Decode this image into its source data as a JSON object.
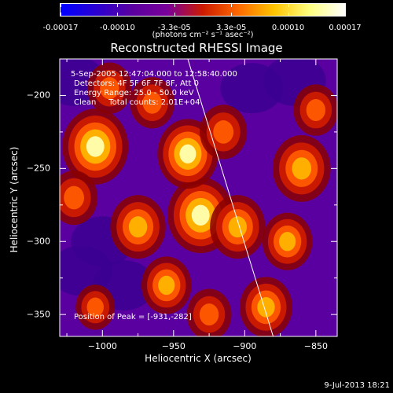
{
  "colorbar": {
    "ticks": [
      "-0.00017",
      "-0.00010",
      "-3.3e-05",
      "3.3e-05",
      "0.00010",
      "0.00017"
    ],
    "units": "(photons cm⁻² s⁻¹ asec⁻²)",
    "colors": [
      "#0000ff",
      "#2a00d0",
      "#5a00a0",
      "#7a009a",
      "#cc1a00",
      "#ff6a00",
      "#ffc400",
      "#ffff80",
      "#ffffff"
    ]
  },
  "chart_data": {
    "type": "heatmap",
    "title": "Reconstructed RHESSI Image",
    "xlabel": "Heliocentric X (arcsec)",
    "ylabel": "Heliocentric Y (arcsec)",
    "xlim": [
      -1030,
      -835
    ],
    "ylim": [
      -365,
      -175
    ],
    "x_ticks": [
      -1000,
      -950,
      -900,
      -850
    ],
    "y_ticks": [
      -200,
      -250,
      -300,
      -350
    ],
    "info_lines": [
      "5-Sep-2005 12:47:04.000 to 12:58:40.000",
      "Detectors: 4F 5F 6F 7F 8F, Att 0",
      "Energy Range: 25.0 - 50.0 keV",
      "Clean     Total counts: 2.01E+04"
    ],
    "peak_label": "Position of Peak = [-931,-282]",
    "peak": [
      -931,
      -282
    ],
    "limb_line": [
      [
        -940,
        -175
      ],
      [
        -880,
        -365
      ]
    ],
    "sources": [
      {
        "x": -1005,
        "y": -235,
        "level": 1.0
      },
      {
        "x": -931,
        "y": -282,
        "level": 1.0
      },
      {
        "x": -940,
        "y": -240,
        "level": 0.9
      },
      {
        "x": -975,
        "y": -290,
        "level": 0.8
      },
      {
        "x": -955,
        "y": -330,
        "level": 0.7
      },
      {
        "x": -860,
        "y": -250,
        "level": 0.85
      },
      {
        "x": -905,
        "y": -290,
        "level": 0.8
      },
      {
        "x": -885,
        "y": -345,
        "level": 0.75
      },
      {
        "x": -1020,
        "y": -270,
        "level": 0.65
      },
      {
        "x": -995,
        "y": -195,
        "level": 0.6
      },
      {
        "x": -965,
        "y": -205,
        "level": 0.6
      },
      {
        "x": -915,
        "y": -225,
        "level": 0.65
      },
      {
        "x": -870,
        "y": -300,
        "level": 0.7
      },
      {
        "x": -925,
        "y": -350,
        "level": 0.6
      },
      {
        "x": -1005,
        "y": -345,
        "level": 0.5
      },
      {
        "x": -850,
        "y": -210,
        "level": 0.6
      }
    ],
    "dark_regions": [
      {
        "x": -895,
        "y": -195,
        "level": -0.7
      },
      {
        "x": -865,
        "y": -190,
        "level": -0.6
      },
      {
        "x": -1015,
        "y": -320,
        "level": -0.65
      },
      {
        "x": -985,
        "y": -330,
        "level": -0.55
      },
      {
        "x": -1020,
        "y": -190,
        "level": -0.5
      },
      {
        "x": -1000,
        "y": -300,
        "level": -0.5
      }
    ]
  },
  "timestamp": "9-Jul-2013 18:21"
}
